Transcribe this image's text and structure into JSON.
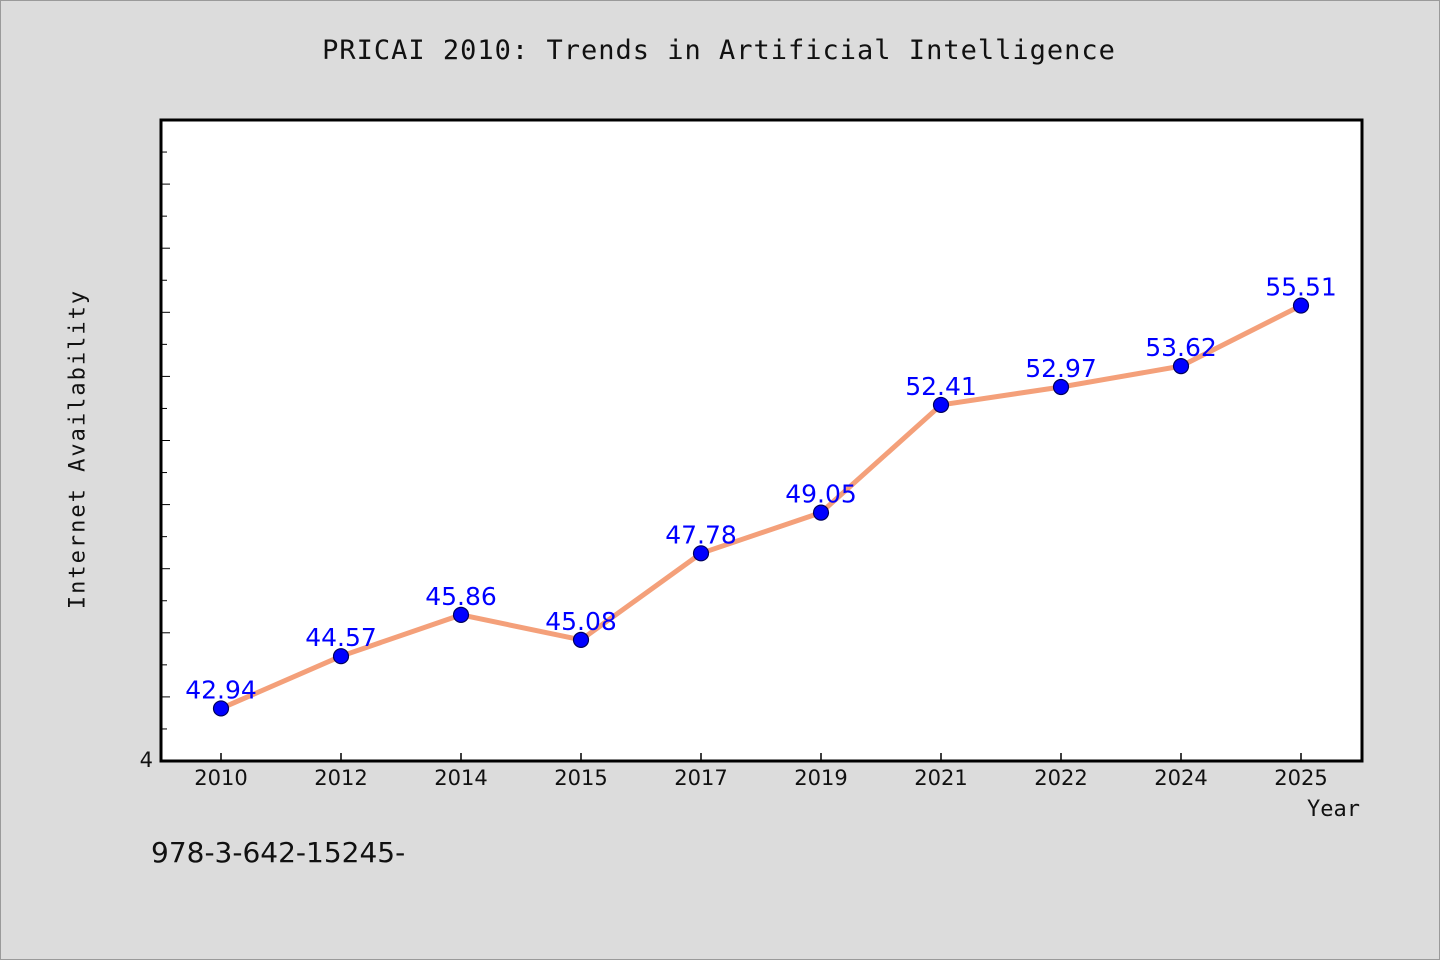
{
  "chart_data": {
    "type": "line",
    "title": "PRICAI 2010: Trends in Artificial Intelligence",
    "xlabel": "Year",
    "ylabel": "Internet Availability",
    "categories": [
      "2010",
      "2012",
      "2014",
      "2015",
      "2017",
      "2019",
      "2021",
      "2022",
      "2024",
      "2025"
    ],
    "series": [
      {
        "values": [
          42.94,
          44.57,
          45.86,
          45.08,
          47.78,
          49.05,
          52.41,
          52.97,
          53.62,
          55.51
        ],
        "data_labels": [
          "42.94",
          "44.57",
          "45.86",
          "45.08",
          "47.78",
          "49.05",
          "52.41",
          "52.97",
          "53.62",
          "55.51"
        ]
      }
    ],
    "ylim": [
      41.3,
      61.3
    ],
    "y_tick_labels": [
      "4"
    ],
    "grid": false,
    "legend": "none",
    "colors": {
      "line": "#f4a07a",
      "marker": "#0000ff",
      "marker_edge": "#00005a",
      "data_label": "#0000ff",
      "plot_background": "#ffffff",
      "page_background": "#dcdcdc"
    }
  },
  "footer": {
    "identifier": "978-3-642-15245-"
  }
}
